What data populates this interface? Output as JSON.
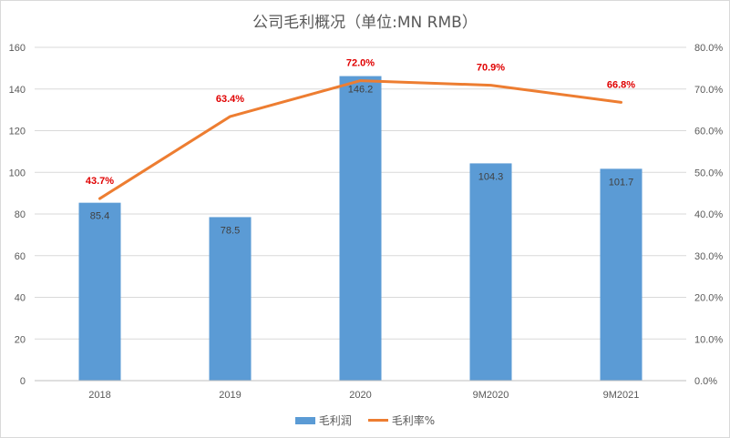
{
  "chart_data": {
    "type": "bar",
    "title": "公司毛利概况（单位:MN RMB）",
    "categories": [
      "2018",
      "2019",
      "2020",
      "9M2020",
      "9M2021"
    ],
    "series": [
      {
        "name": "毛利润",
        "type": "bar",
        "axis": "left",
        "values": [
          85.4,
          78.5,
          146.2,
          104.3,
          101.7
        ],
        "labels": [
          "85.4",
          "78.5",
          "146.2",
          "104.3",
          "101.7"
        ],
        "color": "#5b9bd5"
      },
      {
        "name": "毛利率%",
        "type": "line",
        "axis": "right",
        "values": [
          43.7,
          63.4,
          72.0,
          70.9,
          66.8
        ],
        "labels": [
          "43.7%",
          "63.4%",
          "72.0%",
          "70.9%",
          "66.8%"
        ],
        "color": "#ed7d31",
        "label_color": "#e00000"
      }
    ],
    "y_left": {
      "ylim": [
        0,
        160
      ],
      "ticks": [
        0,
        20,
        40,
        60,
        80,
        100,
        120,
        140,
        160
      ],
      "tick_labels": [
        "0",
        "20",
        "40",
        "60",
        "80",
        "100",
        "120",
        "140",
        "160"
      ]
    },
    "y_right": {
      "ylim": [
        0,
        80
      ],
      "ticks": [
        0,
        10,
        20,
        30,
        40,
        50,
        60,
        70,
        80
      ],
      "tick_labels": [
        "0.0%",
        "10.0%",
        "20.0%",
        "30.0%",
        "40.0%",
        "50.0%",
        "60.0%",
        "70.0%",
        "80.0%"
      ]
    },
    "grid": true,
    "legend_position": "bottom"
  }
}
